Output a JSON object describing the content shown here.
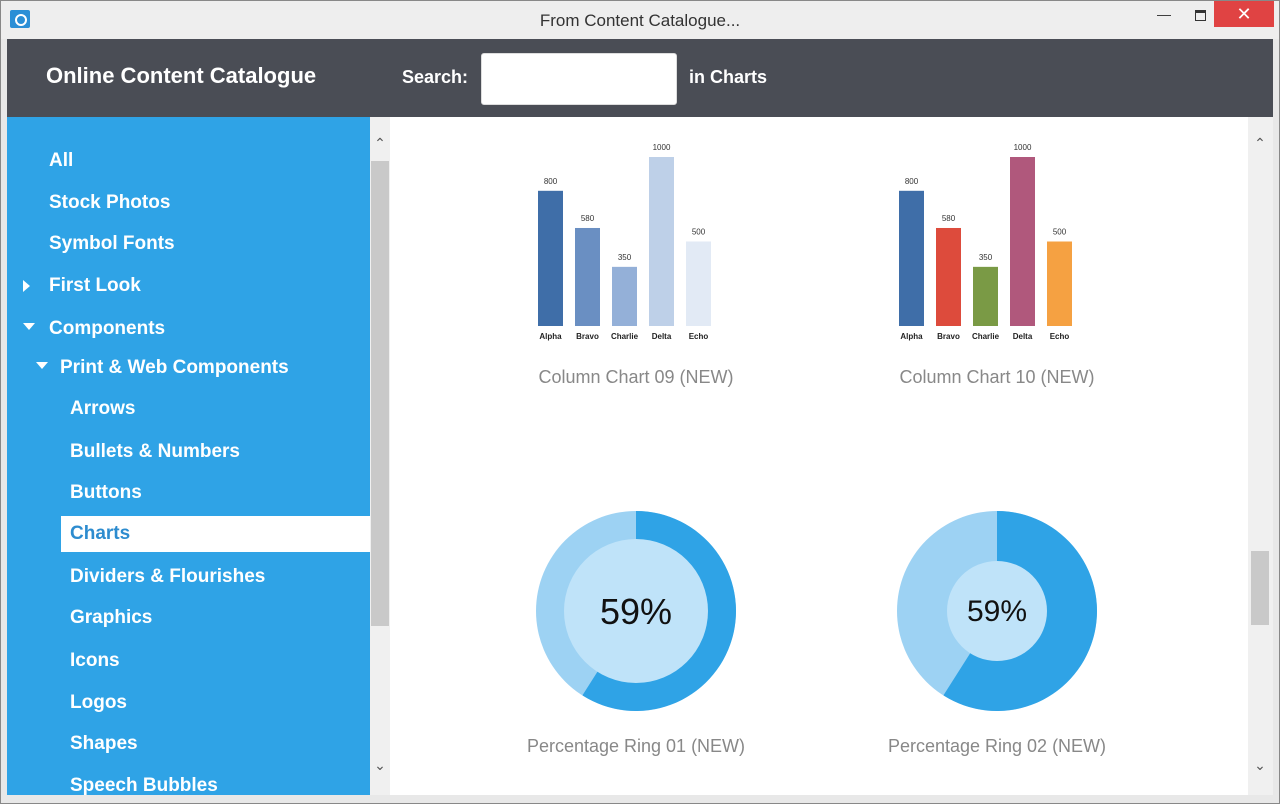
{
  "window": {
    "title": "From Content Catalogue...",
    "minimize_label": "—",
    "close_label": "✕"
  },
  "header": {
    "title": "Online Content Catalogue",
    "search_label": "Search:",
    "search_value": "",
    "search_suffix": "in Charts"
  },
  "sidebar": {
    "items": [
      {
        "label": "All",
        "level": 0,
        "toggle": null
      },
      {
        "label": "Stock Photos",
        "level": 0,
        "toggle": null
      },
      {
        "label": "Symbol Fonts",
        "level": 0,
        "toggle": null
      },
      {
        "label": "First Look",
        "level": 0,
        "toggle": "collapsed"
      },
      {
        "label": "Components",
        "level": 0,
        "toggle": "expanded"
      },
      {
        "label": "Print & Web Components",
        "level": 1,
        "toggle": "expanded"
      },
      {
        "label": "Arrows",
        "level": 2,
        "toggle": null
      },
      {
        "label": "Bullets & Numbers",
        "level": 2,
        "toggle": null
      },
      {
        "label": "Buttons",
        "level": 2,
        "toggle": null
      },
      {
        "label": "Charts",
        "level": 2,
        "toggle": null,
        "selected": true
      },
      {
        "label": "Dividers & Flourishes",
        "level": 2,
        "toggle": null
      },
      {
        "label": "Graphics",
        "level": 2,
        "toggle": null
      },
      {
        "label": "Icons",
        "level": 2,
        "toggle": null
      },
      {
        "label": "Logos",
        "level": 2,
        "toggle": null
      },
      {
        "label": "Shapes",
        "level": 2,
        "toggle": null
      },
      {
        "label": "Speech Bubbles",
        "level": 2,
        "toggle": null
      }
    ]
  },
  "catalogue": {
    "cards": [
      {
        "label": "Column Chart 09 (NEW)"
      },
      {
        "label": "Column Chart 10 (NEW)"
      },
      {
        "label": "Percentage Ring 01 (NEW)"
      },
      {
        "label": "Percentage Ring 02 (NEW)"
      }
    ]
  },
  "chart_data": [
    {
      "type": "bar",
      "categories": [
        "Alpha",
        "Bravo",
        "Charlie",
        "Delta",
        "Echo"
      ],
      "values": [
        800,
        580,
        350,
        1000,
        500
      ],
      "ylim": [
        0,
        1000
      ],
      "colors": [
        "#3f6ea8",
        "#6a8fc2",
        "#94b0d8",
        "#bed0e8",
        "#e2eaf5"
      ]
    },
    {
      "type": "bar",
      "categories": [
        "Alpha",
        "Bravo",
        "Charlie",
        "Delta",
        "Echo"
      ],
      "values": [
        800,
        580,
        350,
        1000,
        500
      ],
      "ylim": [
        0,
        1000
      ],
      "colors": [
        "#3f6ea8",
        "#dd4b3c",
        "#7a9a45",
        "#b0587c",
        "#f5a142"
      ]
    },
    {
      "type": "pie",
      "label": "59%",
      "percent": 59,
      "colors": {
        "fill": "#2fa3e6",
        "track": "#9dd2f3",
        "center": "#bfe3f9"
      }
    },
    {
      "type": "pie",
      "label": "59%",
      "percent": 59,
      "colors": {
        "fill": "#2fa3e6",
        "track": "#9dd2f3",
        "center": "#bfe3f9"
      }
    }
  ]
}
